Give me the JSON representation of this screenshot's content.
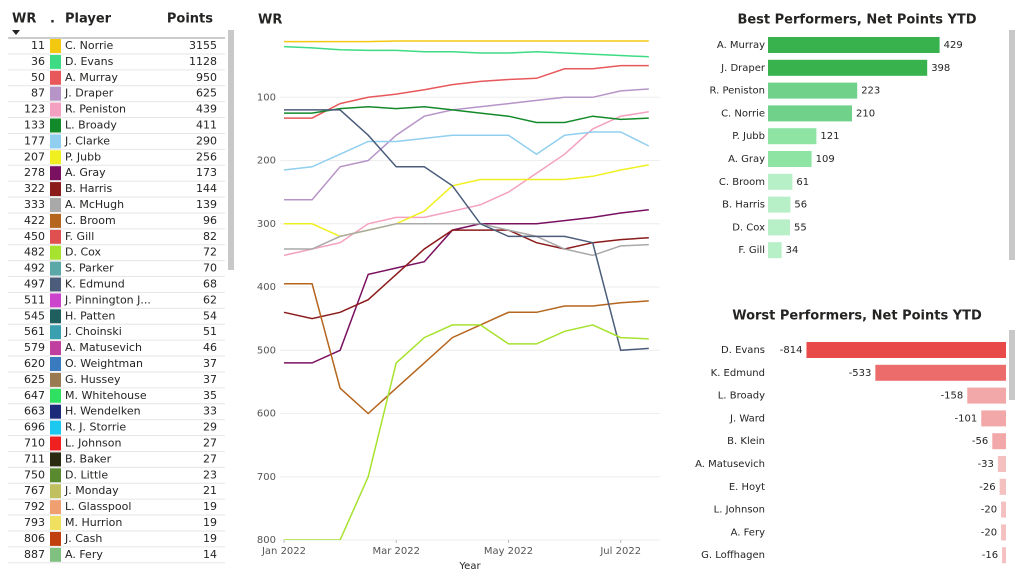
{
  "table": {
    "columns": [
      "WR",
      ".",
      "Player",
      "Points"
    ],
    "rows": [
      {
        "wr": 11,
        "color": "#f2c811",
        "player": "C. Norrie",
        "points": 3155
      },
      {
        "wr": 36,
        "color": "#3ddc84",
        "player": "D. Evans",
        "points": 1128
      },
      {
        "wr": 50,
        "color": "#e8585a",
        "player": "A. Murray",
        "points": 950
      },
      {
        "wr": 87,
        "color": "#b794c8",
        "player": "J. Draper",
        "points": 625
      },
      {
        "wr": 123,
        "color": "#f4a0c0",
        "player": "R. Peniston",
        "points": 439
      },
      {
        "wr": 133,
        "color": "#138a2a",
        "player": "L. Broady",
        "points": 411
      },
      {
        "wr": 177,
        "color": "#90cfef",
        "player": "J. Clarke",
        "points": 290
      },
      {
        "wr": 207,
        "color": "#f0f020",
        "player": "P. Jubb",
        "points": 256
      },
      {
        "wr": 278,
        "color": "#7a1060",
        "player": "A. Gray",
        "points": 173
      },
      {
        "wr": 322,
        "color": "#8b1a1a",
        "player": "B. Harris",
        "points": 144
      },
      {
        "wr": 333,
        "color": "#a9a9a9",
        "player": "A. McHugh",
        "points": 139
      },
      {
        "wr": 422,
        "color": "#b5651d",
        "player": "C. Broom",
        "points": 96
      },
      {
        "wr": 450,
        "color": "#e05050",
        "player": "F. Gill",
        "points": 82
      },
      {
        "wr": 482,
        "color": "#a6e22e",
        "player": "D. Cox",
        "points": 72
      },
      {
        "wr": 492,
        "color": "#5aa8a8",
        "player": "S. Parker",
        "points": 70
      },
      {
        "wr": 497,
        "color": "#4b5d7a",
        "player": "K. Edmund",
        "points": 68
      },
      {
        "wr": 511,
        "color": "#cc44cc",
        "player": "J. Pinnington J...",
        "points": 62
      },
      {
        "wr": 545,
        "color": "#1f5f5f",
        "player": "H. Patten",
        "points": 54
      },
      {
        "wr": 561,
        "color": "#3aa0b0",
        "player": "J. Choinski",
        "points": 51
      },
      {
        "wr": 579,
        "color": "#c040a0",
        "player": "A. Matusevich",
        "points": 46
      },
      {
        "wr": 620,
        "color": "#3a7abf",
        "player": "O. Weightman",
        "points": 37
      },
      {
        "wr": 625,
        "color": "#9a7a50",
        "player": "G. Hussey",
        "points": 37
      },
      {
        "wr": 647,
        "color": "#30e060",
        "player": "M. Whitehouse",
        "points": 35
      },
      {
        "wr": 663,
        "color": "#1c2a7a",
        "player": "H. Wendelken",
        "points": 33
      },
      {
        "wr": 696,
        "color": "#1cc8f0",
        "player": "R. J. Storrie",
        "points": 29
      },
      {
        "wr": 710,
        "color": "#f02020",
        "player": "L. Johnson",
        "points": 27
      },
      {
        "wr": 711,
        "color": "#2a2a10",
        "player": "B. Baker",
        "points": 27
      },
      {
        "wr": 750,
        "color": "#5a8a30",
        "player": "D. Little",
        "points": 23
      },
      {
        "wr": 767,
        "color": "#c0c060",
        "player": "J. Monday",
        "points": 21
      },
      {
        "wr": 792,
        "color": "#f0a070",
        "player": "L. Glasspool",
        "points": 19
      },
      {
        "wr": 793,
        "color": "#f0e060",
        "player": "M. Hurrion",
        "points": 19
      },
      {
        "wr": 806,
        "color": "#c04010",
        "player": "J. Cash",
        "points": 19
      },
      {
        "wr": 887,
        "color": "#80c080",
        "player": "A. Fery",
        "points": 14
      }
    ]
  },
  "chart_data": [
    {
      "type": "line",
      "title": "WR",
      "x_label": "Year",
      "grid": true,
      "y_inverted": true,
      "x": [
        0,
        0.5,
        1,
        1.5,
        2,
        2.5,
        3,
        3.5,
        4,
        4.5,
        5,
        5.5,
        6,
        6.5
      ],
      "xlim": [
        0,
        6.7
      ],
      "xticks": [
        {
          "value": 0,
          "label": "Jan 2022"
        },
        {
          "value": 2,
          "label": "Mar 2022"
        },
        {
          "value": 4,
          "label": "May 2022"
        },
        {
          "value": 6,
          "label": "Jul 2022"
        }
      ],
      "ylim": [
        0,
        800
      ],
      "yticks": [
        100,
        200,
        300,
        400,
        500,
        600,
        700,
        800
      ],
      "series": [
        {
          "name": "C. Norrie",
          "color": "#f2c811",
          "values": [
            12,
            12,
            12,
            12,
            11,
            11,
            11,
            11,
            11,
            11,
            11,
            11,
            11,
            11
          ]
        },
        {
          "name": "D. Evans",
          "color": "#3ddc84",
          "values": [
            20,
            22,
            25,
            26,
            26,
            28,
            28,
            30,
            30,
            28,
            30,
            32,
            34,
            36
          ]
        },
        {
          "name": "A. Murray",
          "color": "#e8585a",
          "values": [
            133,
            133,
            110,
            100,
            95,
            88,
            80,
            75,
            72,
            70,
            55,
            55,
            50,
            50
          ]
        },
        {
          "name": "J. Draper",
          "color": "#b794c8",
          "values": [
            262,
            262,
            210,
            200,
            160,
            130,
            120,
            115,
            110,
            105,
            100,
            100,
            90,
            87
          ]
        },
        {
          "name": "R. Peniston",
          "color": "#f4a0c0",
          "values": [
            350,
            340,
            330,
            300,
            290,
            290,
            280,
            270,
            250,
            220,
            190,
            150,
            130,
            123
          ]
        },
        {
          "name": "L. Broady",
          "color": "#138a2a",
          "values": [
            125,
            125,
            118,
            115,
            118,
            115,
            120,
            125,
            130,
            140,
            140,
            130,
            135,
            133
          ]
        },
        {
          "name": "J. Clarke",
          "color": "#90cfef",
          "values": [
            215,
            210,
            190,
            170,
            170,
            165,
            160,
            160,
            160,
            190,
            160,
            155,
            155,
            177
          ]
        },
        {
          "name": "P. Jubb",
          "color": "#f0f020",
          "values": [
            300,
            300,
            320,
            310,
            300,
            280,
            240,
            230,
            230,
            230,
            230,
            225,
            215,
            207
          ]
        },
        {
          "name": "A. Gray",
          "color": "#7a1060",
          "values": [
            520,
            520,
            500,
            380,
            370,
            360,
            310,
            300,
            300,
            300,
            295,
            290,
            283,
            278
          ]
        },
        {
          "name": "B. Harris",
          "color": "#8b1a1a",
          "values": [
            440,
            450,
            440,
            420,
            380,
            340,
            310,
            310,
            310,
            330,
            340,
            330,
            325,
            322
          ]
        },
        {
          "name": "A. McHugh",
          "color": "#a9a9a9",
          "values": [
            340,
            340,
            320,
            310,
            300,
            300,
            300,
            300,
            310,
            320,
            340,
            350,
            335,
            333
          ]
        },
        {
          "name": "C. Broom",
          "color": "#b5651d",
          "values": [
            395,
            395,
            560,
            600,
            560,
            520,
            480,
            460,
            440,
            440,
            430,
            430,
            425,
            422
          ]
        },
        {
          "name": "K. Edmund",
          "color": "#4b5d7a",
          "values": [
            120,
            120,
            120,
            160,
            210,
            210,
            240,
            300,
            320,
            320,
            320,
            330,
            500,
            497
          ]
        },
        {
          "name": "D. Cox",
          "color": "#a6e22e",
          "values": [
            800,
            800,
            800,
            700,
            520,
            480,
            460,
            460,
            490,
            490,
            470,
            460,
            480,
            482
          ]
        }
      ]
    },
    {
      "type": "hbar",
      "title": "Best Performers, Net Points YTD",
      "xlim": [
        0,
        430
      ],
      "categories": [
        "A. Murray",
        "J. Draper",
        "R. Peniston",
        "C. Norrie",
        "P. Jubb",
        "A. Gray",
        "C. Broom",
        "B. Harris",
        "D. Cox",
        "F. Gill"
      ],
      "values": [
        429,
        398,
        223,
        210,
        121,
        109,
        61,
        56,
        55,
        34
      ],
      "colors": [
        "#37b24d",
        "#37b24d",
        "#6fd18a",
        "#6fd18a",
        "#8ee4a3",
        "#8ee4a3",
        "#b7f0c6",
        "#b7f0c6",
        "#b7f0c6",
        "#b7f0c6"
      ]
    },
    {
      "type": "hbar",
      "title": "Worst Performers, Net Points YTD",
      "xlim": [
        -820,
        0
      ],
      "categories": [
        "D. Evans",
        "K. Edmund",
        "L. Broady",
        "J. Ward",
        "B. Klein",
        "A. Matusevich",
        "E. Hoyt",
        "L. Johnson",
        "A. Fery",
        "G. Loffhagen"
      ],
      "values": [
        -814,
        -533,
        -158,
        -101,
        -56,
        -33,
        -26,
        -20,
        -20,
        -16
      ],
      "colors": [
        "#e84a4a",
        "#ec6c6c",
        "#f2a8a8",
        "#f2a8a8",
        "#f2a8a8",
        "#f5c0c0",
        "#f5c0c0",
        "#f5c0c0",
        "#f5c0c0",
        "#f5c0c0"
      ]
    }
  ]
}
